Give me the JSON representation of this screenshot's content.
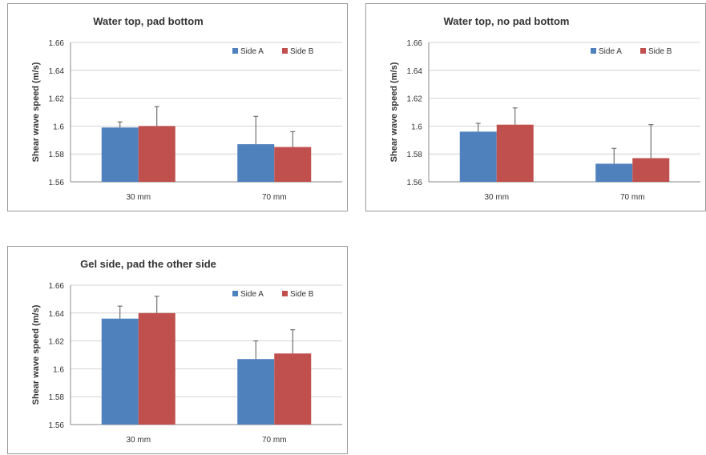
{
  "colors": {
    "side_a": "#4F81BD",
    "side_b": "#C0504D"
  },
  "chart_data": [
    {
      "type": "bar",
      "title": "Water top, pad bottom",
      "xlabel": "",
      "ylabel": "Shear wave speed (m/s)",
      "ylim": [
        1.56,
        1.66
      ],
      "yticks": [
        "1.56",
        "1.58",
        "1.6",
        "1.62",
        "1.64",
        "1.66"
      ],
      "categories": [
        "30 mm",
        "70 mm"
      ],
      "grid": true,
      "legend_position": "top-right",
      "series": [
        {
          "name": "Side A",
          "values": [
            1.599,
            1.587
          ],
          "errors": [
            0.004,
            0.02
          ]
        },
        {
          "name": "Side B",
          "values": [
            1.6,
            1.585
          ],
          "errors": [
            0.014,
            0.011
          ]
        }
      ]
    },
    {
      "type": "bar",
      "title": "Water top, no pad bottom",
      "xlabel": "",
      "ylabel": "Shear wave speed (m/s)",
      "ylim": [
        1.56,
        1.66
      ],
      "yticks": [
        "1.56",
        "1.58",
        "1.6",
        "1.62",
        "1.64",
        "1.66"
      ],
      "categories": [
        "30 mm",
        "70 mm"
      ],
      "grid": true,
      "legend_position": "top-right",
      "series": [
        {
          "name": "Side A",
          "values": [
            1.596,
            1.573
          ],
          "errors": [
            0.006,
            0.011
          ]
        },
        {
          "name": "Side B",
          "values": [
            1.601,
            1.577
          ],
          "errors": [
            0.012,
            0.024
          ]
        }
      ]
    },
    {
      "type": "bar",
      "title": "Gel side, pad the other side",
      "xlabel": "",
      "ylabel": "Shear wave speed (m/s)",
      "ylim": [
        1.56,
        1.66
      ],
      "yticks": [
        "1.56",
        "1.58",
        "1.6",
        "1.62",
        "1.64",
        "1.66"
      ],
      "categories": [
        "30 mm",
        "70 mm"
      ],
      "grid": true,
      "legend_position": "top-right",
      "series": [
        {
          "name": "Side A",
          "values": [
            1.636,
            1.607
          ],
          "errors": [
            0.009,
            0.013
          ]
        },
        {
          "name": "Side B",
          "values": [
            1.64,
            1.611
          ],
          "errors": [
            0.012,
            0.017
          ]
        }
      ]
    }
  ]
}
